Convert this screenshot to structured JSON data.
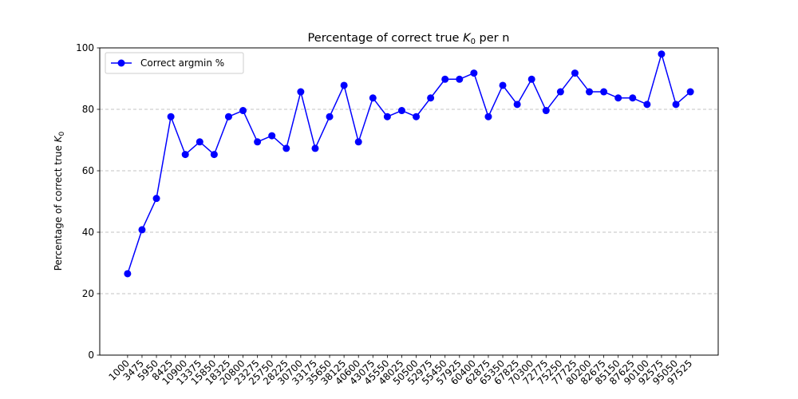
{
  "chart_data": {
    "type": "line",
    "title_prefix": "Percentage of correct true ",
    "title_var": "K",
    "title_sub": "0",
    "title_suffix": " per n",
    "xlabel": "",
    "ylabel_prefix": "Percentage of correct true ",
    "ylabel_var": "K",
    "ylabel_sub": "0",
    "ylim": [
      0,
      100
    ],
    "yticks": [
      0,
      20,
      40,
      60,
      80,
      100
    ],
    "grid": "y-dashed",
    "legend_position": "top-left",
    "x": [
      1000,
      3475,
      5950,
      8425,
      10900,
      13375,
      15850,
      18325,
      20800,
      23275,
      25750,
      28225,
      30700,
      33175,
      35650,
      38125,
      40600,
      43075,
      45550,
      48025,
      50500,
      52975,
      55450,
      57925,
      60400,
      62875,
      65350,
      67825,
      70300,
      72775,
      75250,
      77725,
      80200,
      82675,
      85150,
      87625,
      90100,
      92575,
      95050,
      97525
    ],
    "series": [
      {
        "name": "Correct argmin %",
        "color": "#0000ff",
        "values": [
          26.5,
          40.8,
          51.0,
          77.6,
          65.3,
          69.4,
          65.3,
          77.6,
          79.6,
          69.4,
          71.4,
          67.3,
          85.7,
          67.3,
          77.6,
          87.8,
          69.4,
          83.7,
          77.6,
          79.6,
          77.6,
          83.7,
          89.8,
          89.8,
          91.8,
          77.6,
          87.8,
          81.6,
          89.8,
          79.6,
          85.7,
          91.8,
          85.7,
          85.7,
          83.7,
          83.7,
          81.6,
          98.0,
          81.6,
          85.7
        ]
      }
    ]
  }
}
